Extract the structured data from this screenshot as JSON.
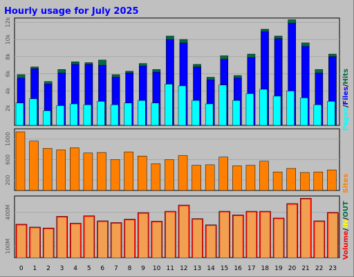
{
  "colors": {
    "background": "#c0c0c0",
    "panel": "#c0c0c0",
    "grid": "#a8a8a8",
    "title": "#0000ff",
    "hits": "#006c46",
    "files": "#0000ff",
    "pages": "#00ffff",
    "sites": "#ff8000",
    "visits": "#ffff00",
    "volume": "#ff0000",
    "volume_fill": "#f0a050"
  },
  "chart_data": [
    {
      "type": "bar",
      "title": "Hourly usage for July 2025",
      "categories": [
        "0",
        "1",
        "2",
        "3",
        "4",
        "5",
        "6",
        "7",
        "8",
        "9",
        "10",
        "11",
        "12",
        "13",
        "14",
        "15",
        "16",
        "17",
        "18",
        "19",
        "20",
        "21",
        "22",
        "23"
      ],
      "series": [
        {
          "name": "Hits",
          "values": [
            5900,
            6800,
            5100,
            6500,
            7400,
            7300,
            7600,
            5900,
            6300,
            7200,
            6500,
            10400,
            10000,
            7100,
            5600,
            8100,
            5800,
            8300,
            11200,
            10400,
            12300,
            9600,
            6500,
            8300
          ]
        },
        {
          "name": "Files",
          "values": [
            5500,
            6600,
            4800,
            6100,
            7100,
            7100,
            7000,
            5600,
            6100,
            6900,
            6200,
            10000,
            9600,
            6800,
            5300,
            7700,
            5500,
            7900,
            10900,
            10100,
            11900,
            9200,
            6100,
            8000
          ]
        },
        {
          "name": "Pages",
          "values": [
            2600,
            3100,
            1700,
            2300,
            2500,
            2400,
            2800,
            2400,
            2600,
            2900,
            2600,
            4800,
            4600,
            2900,
            2500,
            4700,
            2900,
            3700,
            4200,
            3400,
            4000,
            3200,
            2400,
            2800
          ]
        }
      ],
      "yticks": [
        "2k",
        "4k",
        "6k",
        "8k",
        "10k",
        "12k"
      ],
      "ylim": [
        0,
        12500
      ],
      "legend": [
        "Pages",
        "Files",
        "Hits"
      ],
      "legend_placement": "right",
      "grid": true
    },
    {
      "type": "bar",
      "categories": [
        "0",
        "1",
        "2",
        "3",
        "4",
        "5",
        "6",
        "7",
        "8",
        "9",
        "10",
        "11",
        "12",
        "13",
        "14",
        "15",
        "16",
        "17",
        "18",
        "19",
        "20",
        "21",
        "22",
        "23"
      ],
      "series": [
        {
          "name": "Sites",
          "values": [
            1140,
            960,
            820,
            790,
            830,
            730,
            740,
            600,
            750,
            670,
            520,
            600,
            680,
            490,
            500,
            650,
            480,
            490,
            570,
            360,
            430,
            350,
            360,
            400
          ]
        }
      ],
      "yticks": [
        "200",
        "600",
        "1000"
      ],
      "ylim": [
        0,
        1200
      ],
      "legend": [
        "Sites"
      ],
      "legend_placement": "right",
      "grid": true
    },
    {
      "type": "bar",
      "categories": [
        "0",
        "1",
        "2",
        "3",
        "4",
        "5",
        "6",
        "7",
        "8",
        "9",
        "10",
        "11",
        "12",
        "13",
        "14",
        "15",
        "16",
        "17",
        "18",
        "19",
        "20",
        "21",
        "22",
        "23"
      ],
      "series": [
        {
          "name": "Volume",
          "values": [
            295,
            270,
            262,
            365,
            305,
            370,
            325,
            310,
            340,
            398,
            322,
            410,
            465,
            345,
            290,
            410,
            378,
            410,
            410,
            350,
            478,
            525,
            325,
            400
          ]
        }
      ],
      "yticks": [
        "100M",
        "400M"
      ],
      "ylim": [
        0,
        545
      ],
      "legend": [
        "Volume",
        "IN",
        "OUT"
      ],
      "legend_placement": "right",
      "grid": true
    }
  ],
  "legend_separator": "/"
}
